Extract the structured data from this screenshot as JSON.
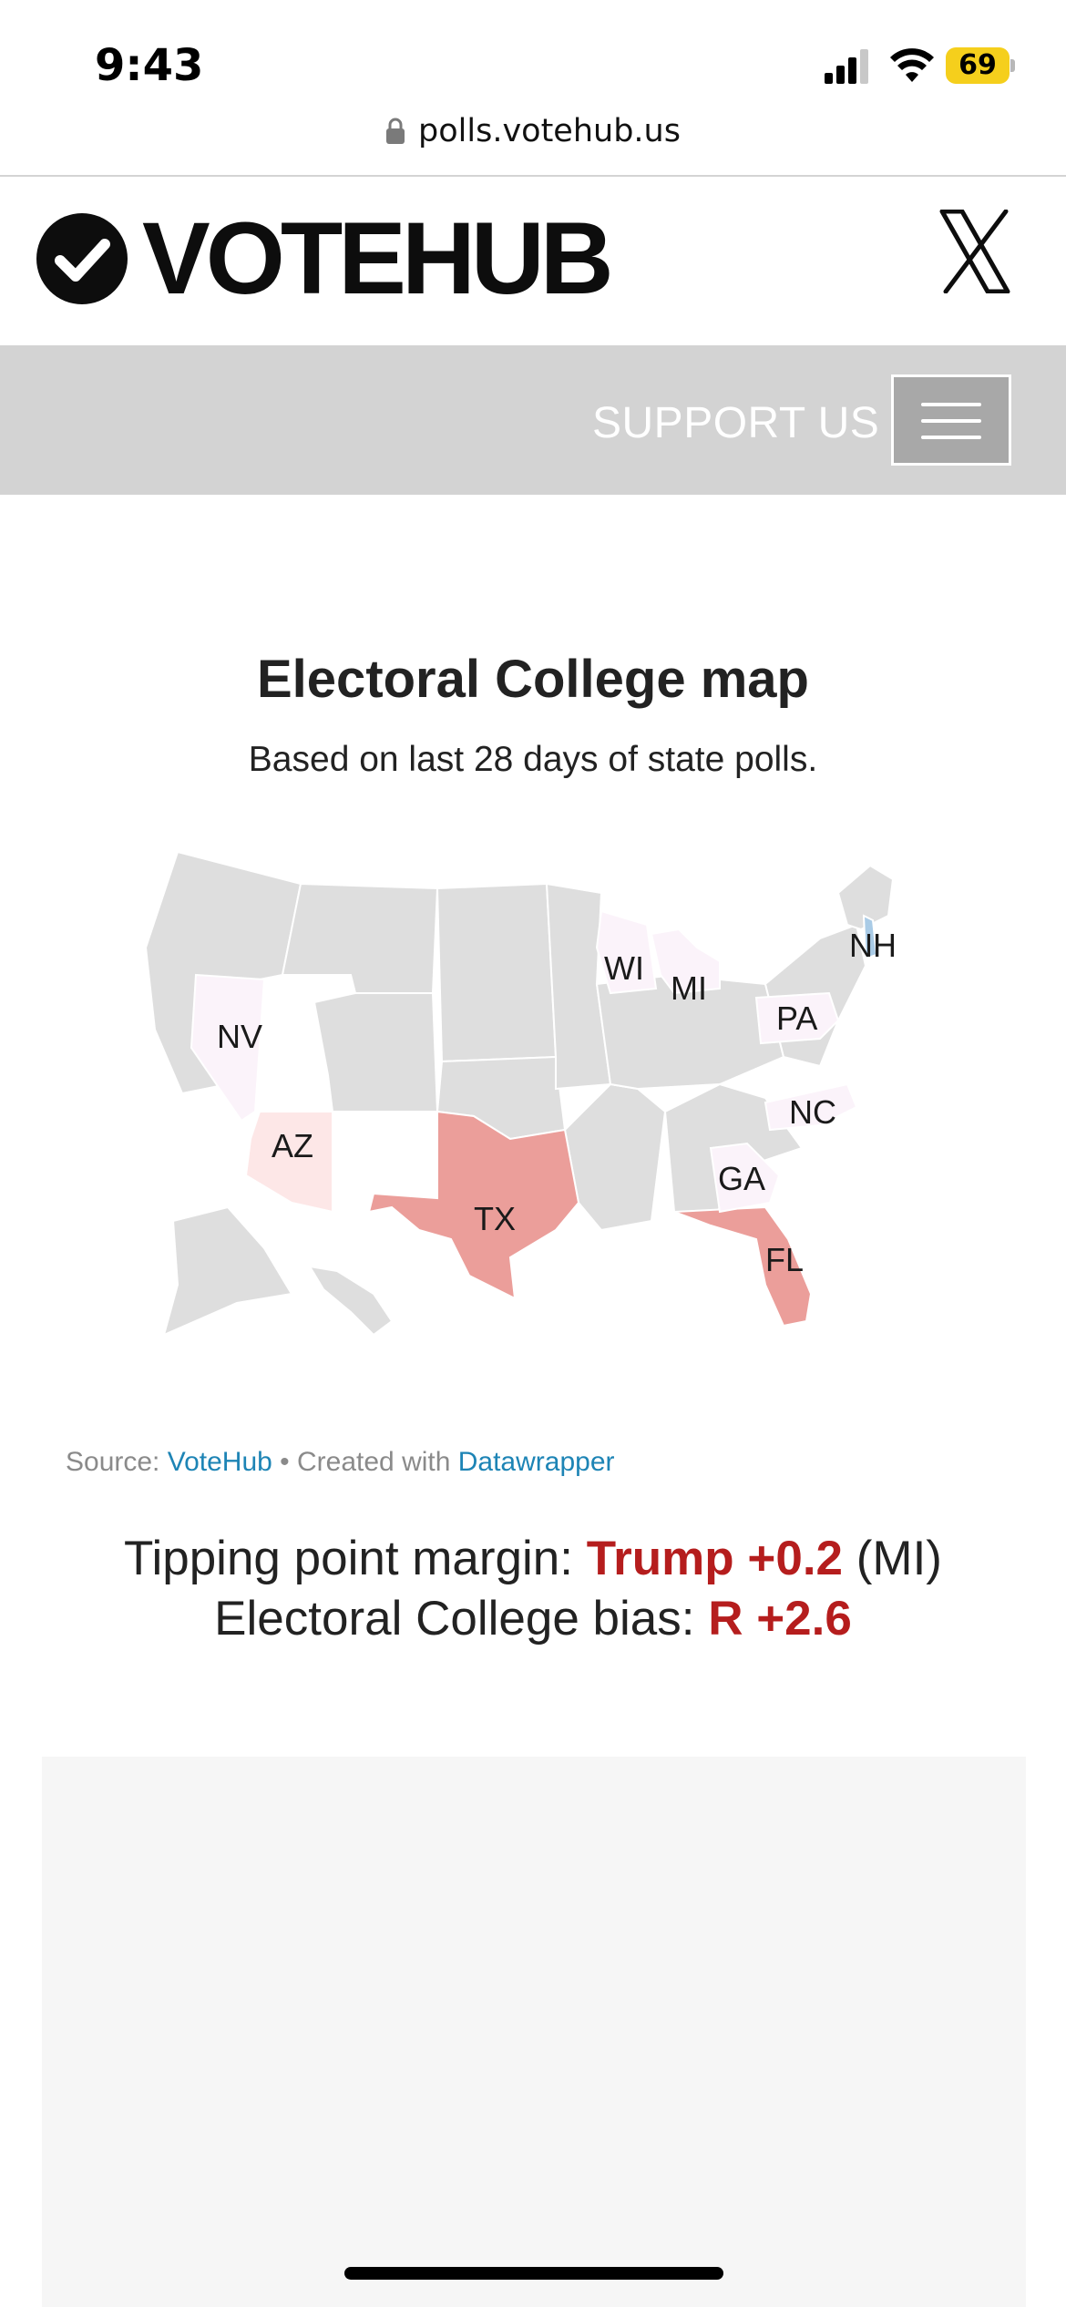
{
  "status_bar": {
    "time": "9:43",
    "battery": "69"
  },
  "browser": {
    "url": "polls.votehub.us"
  },
  "header": {
    "logo_text": "VOTEHUB"
  },
  "nav": {
    "support_label": "SUPPORT US"
  },
  "main": {
    "title": "Electoral College map",
    "subtitle": "Based on last 28 days of state polls.",
    "source_prefix": "Source: ",
    "source_link": "VoteHub",
    "created_prefix": " • Created with ",
    "created_link": "Datawrapper"
  },
  "map": {
    "states": [
      {
        "label": "NV",
        "fill": "#fbf3fa"
      },
      {
        "label": "AZ",
        "fill": "#fde7e7"
      },
      {
        "label": "TX",
        "fill": "#eb9e9a"
      },
      {
        "label": "FL",
        "fill": "#eb9e9a"
      },
      {
        "label": "WI",
        "fill": "#fbf3fa"
      },
      {
        "label": "MI",
        "fill": "#fbf3fa"
      },
      {
        "label": "PA",
        "fill": "#fbf3fa"
      },
      {
        "label": "NC",
        "fill": "#fbf3fa"
      },
      {
        "label": "GA",
        "fill": "#fbf3fa"
      },
      {
        "label": "NH",
        "fill": "#a9cbe6"
      }
    ],
    "neutral_fill": "#dedede"
  },
  "metrics": {
    "tipping_label": "Tipping point margin: ",
    "tipping_value": "Trump +0.2",
    "tipping_state": " (MI)",
    "bias_label": "Electoral College bias: ",
    "bias_value": "R +2.6",
    "highlight_color": "#b51d1d"
  }
}
